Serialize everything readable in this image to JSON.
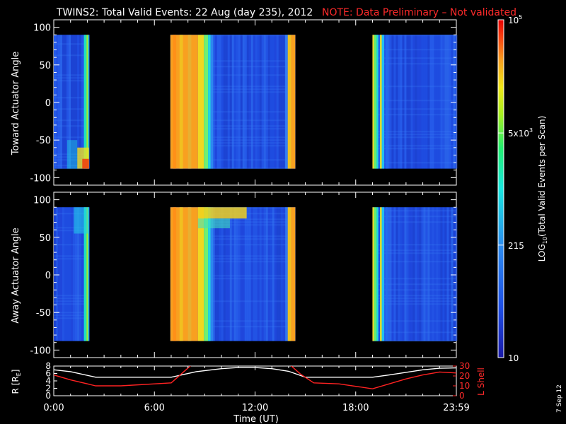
{
  "title": "TWINS2: Total Valid Events: 22 Aug (day 235), 2012",
  "note": "NOTE: Data Preliminary – Not validated",
  "date_stamp": "7 Sep 12",
  "colors": {
    "background": "#000000",
    "note_red": "#ff2a2a",
    "line_white": "#ffffff",
    "line_red": "#ff2222"
  },
  "chart_data": [
    {
      "type": "heatmap",
      "ylabel": "Toward Actuator Angle",
      "ylim": [
        -110,
        110
      ],
      "yticks": [
        "100",
        "50",
        "0",
        "-50",
        "-100"
      ],
      "data_range_deg": [
        -88,
        90
      ],
      "xlim_hours": [
        0,
        24
      ],
      "segments": [
        {
          "start_h": 0.0,
          "end_h": 2.1
        },
        {
          "start_h": 6.95,
          "end_h": 14.4
        },
        {
          "start_h": 19.0,
          "end_h": 24.0
        }
      ]
    },
    {
      "type": "heatmap",
      "ylabel": "Away Actuator Angle",
      "ylim": [
        -110,
        110
      ],
      "yticks": [
        "100",
        "50",
        "0",
        "-50",
        "-100"
      ],
      "data_range_deg": [
        -88,
        90
      ],
      "xlim_hours": [
        0,
        24
      ],
      "segments": [
        {
          "start_h": 0.0,
          "end_h": 2.1
        },
        {
          "start_h": 6.95,
          "end_h": 14.4
        },
        {
          "start_h": 19.0,
          "end_h": 24.0
        }
      ]
    },
    {
      "type": "line",
      "ylabel_left": "R [R",
      "ylabel_left_sub": "E",
      "ylabel_left_end": "]",
      "ylabel_right": "L Shell",
      "yticks_left": [
        "8",
        "6",
        "4",
        "2",
        "0"
      ],
      "yticks_right": [
        "30",
        "20",
        "10",
        "0"
      ],
      "ylim_left": [
        0,
        8
      ],
      "ylim_right": [
        0,
        30
      ],
      "xlabel": "Time (UT)",
      "xticks": [
        "0:00",
        "6:00",
        "12:00",
        "18:00",
        "23:59"
      ],
      "series": [
        {
          "axis": "left",
          "color": "#ffffff",
          "x": [
            0,
            1,
            2.5,
            4,
            7,
            8.5,
            10,
            11,
            12,
            13,
            14,
            15,
            17,
            19,
            20,
            21,
            22,
            23,
            24
          ],
          "y": [
            7.0,
            6.5,
            5.0,
            5.0,
            5.0,
            6.5,
            7.3,
            7.6,
            7.6,
            7.3,
            6.6,
            5.0,
            5.0,
            5.0,
            5.6,
            6.3,
            7.0,
            7.4,
            7.5
          ]
        },
        {
          "axis": "right",
          "color": "#ff2222",
          "x": [
            0,
            1,
            2.5,
            4,
            7,
            7.6,
            8.2,
            14.1,
            14.7,
            15.5,
            17,
            19,
            20,
            21,
            22,
            23,
            24
          ],
          "y": [
            21,
            16,
            10,
            10,
            13,
            22,
            31,
            31,
            22,
            13,
            12,
            7,
            12,
            17,
            21,
            24,
            23
          ]
        }
      ]
    }
  ],
  "colorbar": {
    "label_pre": "LOG",
    "label_sub": "10",
    "label_post": "(Total Valid Events per Scan)",
    "ticks": [
      {
        "text": "10",
        "frac": 0.0
      },
      {
        "text": "215",
        "frac": 0.333
      },
      {
        "base": "5x10",
        "exp": "3",
        "frac": 0.665
      },
      {
        "base": "10",
        "exp": "5",
        "frac": 1.0
      }
    ]
  }
}
